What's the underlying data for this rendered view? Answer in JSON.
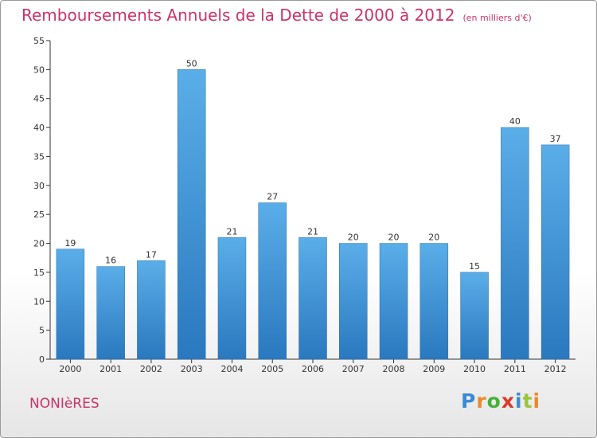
{
  "chart_data": {
    "type": "bar",
    "title": "Remboursements Annuels de la Dette de 2000 à 2012",
    "subtitle": "(en milliers d'€)",
    "xlabel": "",
    "ylabel": "",
    "categories": [
      "2000",
      "2001",
      "2002",
      "2003",
      "2004",
      "2005",
      "2006",
      "2007",
      "2008",
      "2009",
      "2010",
      "2011",
      "2012"
    ],
    "values": [
      19,
      16,
      17,
      50,
      21,
      27,
      21,
      20,
      20,
      20,
      15,
      40,
      37
    ],
    "ylim": [
      0,
      55
    ],
    "yticks": [
      0,
      5,
      10,
      15,
      20,
      25,
      30,
      35,
      40,
      45,
      50,
      55
    ],
    "grid": false,
    "legend": "none",
    "bar_color_top": "#5aaee8",
    "bar_color_bottom": "#2a78bf"
  },
  "footer": {
    "commune": "NONIèRES",
    "brand_letters": [
      "P",
      "r",
      "o",
      "x",
      "i",
      "t",
      "i"
    ],
    "brand_colors": [
      "#3a8ad4",
      "#e9892b",
      "#4aae3a",
      "#d93a2b",
      "#3a8ad4",
      "#9ac43a",
      "#e9892b"
    ]
  },
  "colors": {
    "title": "#cc3366",
    "axis": "#333333"
  }
}
